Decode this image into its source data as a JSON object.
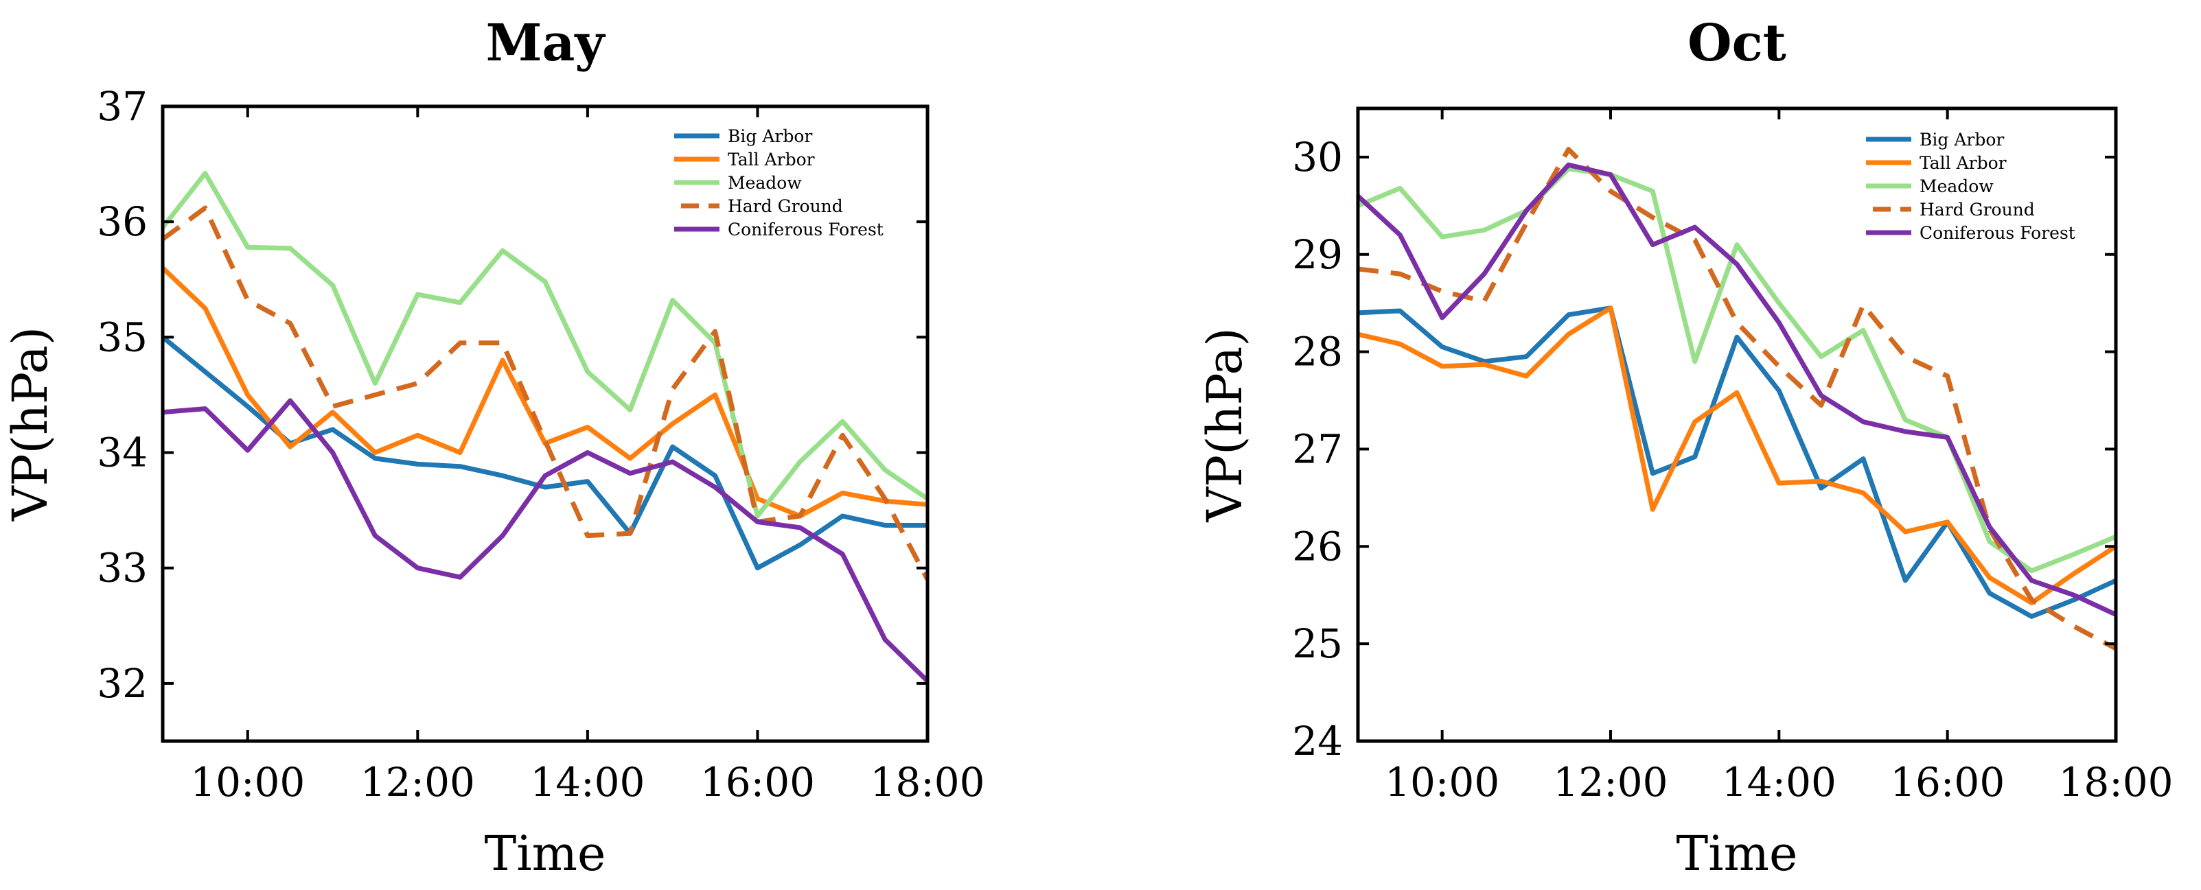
{
  "chart_data": [
    {
      "type": "line",
      "title": "May",
      "xlabel": "Time",
      "ylabel": "VP(hPa)",
      "xlim": [
        9,
        18
      ],
      "ylim": [
        31.5,
        37
      ],
      "x_ticks": [
        10,
        12,
        14,
        16,
        18
      ],
      "x_tick_labels": [
        "10:00",
        "12:00",
        "14:00",
        "16:00",
        "18:00"
      ],
      "y_ticks": [
        32,
        33,
        34,
        35,
        36,
        37
      ],
      "y_tick_labels": [
        "32",
        "33",
        "34",
        "35",
        "36",
        "37"
      ],
      "legend_position": "top-right",
      "x": [
        9,
        9.5,
        10,
        10.5,
        11,
        11.5,
        12,
        12.5,
        13,
        13.5,
        14,
        14.5,
        15,
        15.5,
        16,
        16.5,
        17,
        17.5,
        18
      ],
      "series": [
        {
          "name": "Big Arbor",
          "color": "#1f77b4",
          "dash": "solid",
          "values": [
            35.0,
            34.7,
            34.4,
            34.08,
            34.2,
            33.95,
            33.9,
            33.88,
            33.8,
            33.7,
            33.75,
            33.3,
            34.05,
            33.8,
            33.0,
            33.2,
            33.45,
            33.37,
            33.37
          ]
        },
        {
          "name": "Tall Arbor",
          "color": "#ff7f0e",
          "dash": "solid",
          "values": [
            35.6,
            35.25,
            34.5,
            34.05,
            34.35,
            34.0,
            34.15,
            34.0,
            34.8,
            34.08,
            34.22,
            33.95,
            34.25,
            34.5,
            33.6,
            33.45,
            33.65,
            33.58,
            33.55
          ]
        },
        {
          "name": "Meadow",
          "color": "#98df8a",
          "dash": "solid",
          "values": [
            35.95,
            36.42,
            35.78,
            35.77,
            35.45,
            34.6,
            35.37,
            35.3,
            35.75,
            35.48,
            34.7,
            34.37,
            35.32,
            34.95,
            33.45,
            33.92,
            34.27,
            33.85,
            33.6
          ]
        },
        {
          "name": "Hard Ground",
          "color": "#d2691e",
          "dash": "dashed",
          "values": [
            35.85,
            36.12,
            35.32,
            35.12,
            34.4,
            34.5,
            34.6,
            34.95,
            34.95,
            34.1,
            33.28,
            33.3,
            34.55,
            35.05,
            33.4,
            33.45,
            34.15,
            33.6,
            32.9
          ]
        },
        {
          "name": "Coniferous Forest",
          "color": "#7b2fa7",
          "dash": "solid",
          "values": [
            34.35,
            34.38,
            34.02,
            34.45,
            34.0,
            33.28,
            33.0,
            32.92,
            33.28,
            33.8,
            34.0,
            33.82,
            33.92,
            33.7,
            33.4,
            33.35,
            33.12,
            32.38,
            32.02
          ]
        }
      ]
    },
    {
      "type": "line",
      "title": "Oct",
      "xlabel": "Time",
      "ylabel": "VP(hPa)",
      "xlim": [
        9,
        18
      ],
      "ylim": [
        24,
        30.5
      ],
      "x_ticks": [
        10,
        12,
        14,
        16,
        18
      ],
      "x_tick_labels": [
        "10:00",
        "12:00",
        "14:00",
        "16:00",
        "18:00"
      ],
      "y_ticks": [
        24,
        25,
        26,
        27,
        28,
        29,
        30
      ],
      "y_tick_labels": [
        "24",
        "25",
        "26",
        "27",
        "28",
        "29",
        "30"
      ],
      "legend_position": "top-right",
      "x": [
        9,
        9.5,
        10,
        10.5,
        11,
        11.5,
        12,
        12.5,
        13,
        13.5,
        14,
        14.5,
        15,
        15.5,
        16,
        16.5,
        17,
        17.5,
        18
      ],
      "series": [
        {
          "name": "Big Arbor",
          "color": "#1f77b4",
          "dash": "solid",
          "values": [
            28.4,
            28.42,
            28.05,
            27.9,
            27.95,
            28.38,
            28.45,
            26.75,
            26.92,
            28.15,
            27.6,
            26.6,
            26.9,
            25.65,
            26.25,
            25.52,
            25.28,
            25.45,
            25.65
          ]
        },
        {
          "name": "Tall Arbor",
          "color": "#ff7f0e",
          "dash": "solid",
          "values": [
            28.18,
            28.08,
            27.85,
            27.87,
            27.75,
            28.18,
            28.45,
            26.38,
            27.28,
            27.58,
            26.65,
            26.67,
            26.55,
            26.15,
            26.25,
            25.68,
            25.42,
            25.72,
            26.0
          ]
        },
        {
          "name": "Meadow",
          "color": "#98df8a",
          "dash": "solid",
          "values": [
            29.5,
            29.68,
            29.18,
            29.25,
            29.45,
            29.88,
            29.82,
            29.65,
            27.9,
            29.1,
            28.5,
            27.95,
            28.22,
            27.3,
            27.12,
            26.05,
            25.75,
            25.92,
            26.1
          ]
        },
        {
          "name": "Hard Ground",
          "color": "#d2691e",
          "dash": "dashed",
          "values": [
            28.85,
            28.8,
            28.62,
            28.52,
            29.32,
            30.08,
            29.65,
            29.38,
            29.15,
            28.3,
            27.85,
            27.45,
            28.48,
            27.95,
            27.75,
            26.18,
            25.45,
            25.18,
            24.95
          ]
        },
        {
          "name": "Coniferous Forest",
          "color": "#7b2fa7",
          "dash": "solid",
          "values": [
            29.6,
            29.2,
            28.35,
            28.8,
            29.45,
            29.92,
            29.82,
            29.1,
            29.28,
            28.9,
            28.3,
            27.55,
            27.28,
            27.18,
            27.12,
            26.2,
            25.65,
            25.5,
            25.3
          ]
        }
      ]
    }
  ]
}
